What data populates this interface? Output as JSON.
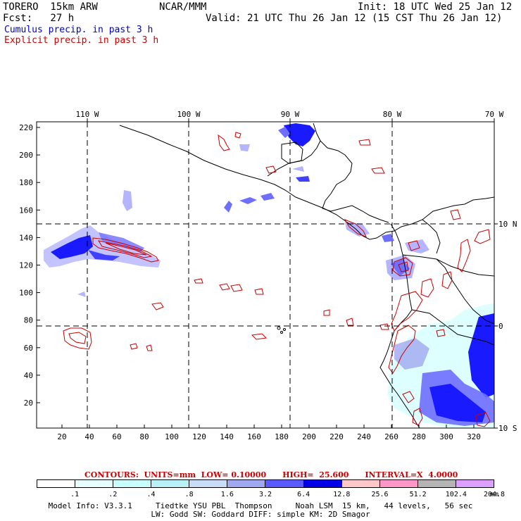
{
  "header": {
    "model": "TORERO  15km ARW",
    "org": "NCAR/MMM",
    "init": "Init: 18 UTC Wed 25 Jan 12",
    "fcst": "Fcst:   27 h",
    "valid": "Valid: 21 UTC Thu 26 Jan 12 (15 CST Thu 26 Jan 12)",
    "cumulus": "Cumulus precip. in past 3 h",
    "explicit": "Explicit precip. in past 3 h"
  },
  "colors": {
    "cumulus": "#0000cc",
    "explicit": "#cc0000",
    "precip_dark": "#1a1aff",
    "precip_mid": "#6e6eff",
    "precip_light": "#b4b4ff"
  },
  "map": {
    "lon_labels": [
      "110 W",
      "100 W",
      "90 W",
      "80 W",
      "70 W"
    ],
    "lat_labels": [
      "10 N",
      "0",
      "10 S"
    ],
    "y_ticks": [
      "220",
      "200",
      "180",
      "160",
      "140",
      "120",
      "100",
      "80",
      "60",
      "40",
      "20"
    ],
    "x_ticks": [
      "20",
      "40",
      "60",
      "80",
      "100",
      "120",
      "140",
      "160",
      "180",
      "200",
      "220",
      "240",
      "260",
      "280",
      "300",
      "320"
    ]
  },
  "contours": {
    "text": "CONTOURS:  UNITS=mm  LOW= 0.10000      HIGH=  25.600      INTERVAL=X  4.0000"
  },
  "colorbar": {
    "labels": [
      ".1",
      ".2",
      ".4",
      ".8",
      "1.6",
      "3.2",
      "6.4",
      "12.8",
      "25.6",
      "51.2",
      "102.4",
      "204.8"
    ],
    "unit": "mm",
    "colors": [
      "#ffffff",
      "#e8ffff",
      "#c8ffff",
      "#b8f0f8",
      "#c8dcf8",
      "#a0a8f0",
      "#5a5aff",
      "#0000e6",
      "#ffc8c8",
      "#ff96c8",
      "#b4b4b4",
      "#dca0ff"
    ]
  },
  "footer": {
    "line1": "Model Info: V3.3.1     Tiedtke YSU PBL  Thompson     Noah LSM  15 km,   44 levels,   56 sec",
    "line2": "LW: Godd SW: Goddard DIFF: simple KM: 2D Smagor"
  }
}
